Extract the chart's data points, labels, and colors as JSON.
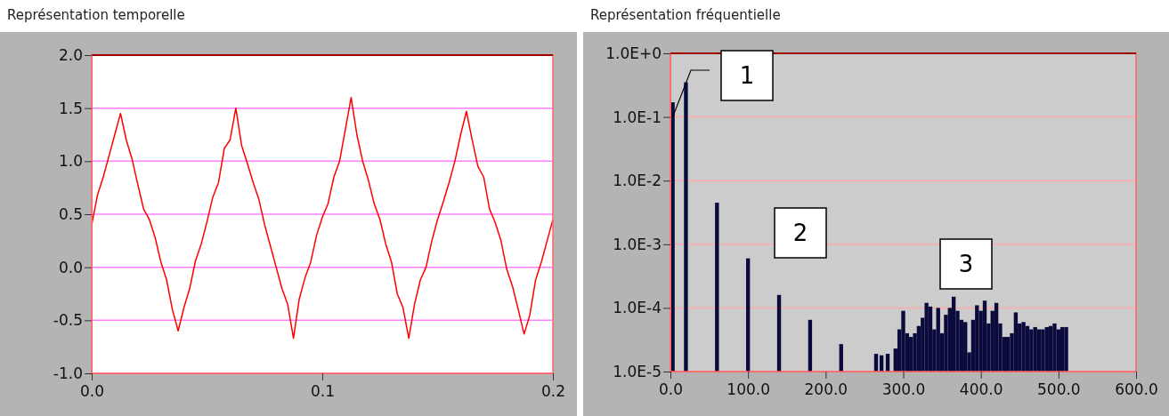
{
  "chart_data": [
    {
      "type": "line",
      "title": "Représentation temporelle",
      "color": "#ff0000",
      "grid": "y",
      "x": [
        0,
        0.0025,
        0.005,
        0.0075,
        0.01,
        0.0125,
        0.015,
        0.0175,
        0.02,
        0.0225,
        0.025,
        0.0275,
        0.03,
        0.0325,
        0.035,
        0.0375,
        0.04,
        0.0425,
        0.045,
        0.0475,
        0.05,
        0.0525,
        0.055,
        0.0575,
        0.06,
        0.0625,
        0.065,
        0.0675,
        0.07,
        0.0725,
        0.075,
        0.0775,
        0.08,
        0.0825,
        0.085,
        0.0875,
        0.09,
        0.0925,
        0.095,
        0.0975,
        0.1,
        0.1025,
        0.105,
        0.1075,
        0.11,
        0.1125,
        0.115,
        0.1175,
        0.12,
        0.1225,
        0.125,
        0.1275,
        0.13,
        0.1325,
        0.135,
        0.1375,
        0.14,
        0.1425,
        0.145,
        0.1475,
        0.15,
        0.1525,
        0.155,
        0.1575,
        0.16,
        0.1625,
        0.165,
        0.1675,
        0.17,
        0.1725,
        0.175,
        0.1775,
        0.18,
        0.1825,
        0.185,
        0.1875,
        0.19,
        0.1925,
        0.195,
        0.1975,
        0.2
      ],
      "values": [
        0.4,
        0.68,
        0.85,
        1.05,
        1.25,
        1.45,
        1.2,
        1.02,
        0.78,
        0.55,
        0.45,
        0.28,
        0.05,
        -0.12,
        -0.4,
        -0.6,
        -0.38,
        -0.2,
        0.06,
        0.22,
        0.43,
        0.66,
        0.8,
        1.12,
        1.2,
        1.5,
        1.15,
        0.98,
        0.8,
        0.64,
        0.4,
        0.2,
        0.0,
        -0.2,
        -0.35,
        -0.67,
        -0.3,
        -0.1,
        0.05,
        0.3,
        0.47,
        0.6,
        0.85,
        1.0,
        1.3,
        1.6,
        1.25,
        1.0,
        0.82,
        0.6,
        0.45,
        0.22,
        0.05,
        -0.25,
        -0.38,
        -0.67,
        -0.35,
        -0.12,
        0.0,
        0.25,
        0.45,
        0.62,
        0.8,
        1.0,
        1.25,
        1.47,
        1.2,
        0.95,
        0.85,
        0.55,
        0.42,
        0.25,
        -0.02,
        -0.18,
        -0.4,
        -0.63,
        -0.45,
        -0.12,
        0.05,
        0.25,
        0.45
      ],
      "xlim": [
        0,
        0.2
      ],
      "xticks": [
        {
          "value": 0,
          "label": "0.0"
        },
        0.1,
        0.2
      ],
      "ylim": [
        -1,
        2
      ],
      "yticks": [
        {
          "value": -1,
          "label": "-1.0"
        },
        {
          "value": -0.5,
          "label": "-0.5"
        },
        {
          "value": 0,
          "label": "0.0"
        },
        0.5,
        {
          "value": 1,
          "label": "1.0"
        },
        1.5,
        {
          "value": 2,
          "label": "2.0"
        }
      ]
    },
    {
      "type": "bar",
      "title": "Représentation fréquentielle",
      "color": "#0a0a3c",
      "grid": "y",
      "log": "y",
      "x": [
        3,
        20,
        60,
        100,
        140,
        180,
        220,
        265,
        272,
        280,
        290,
        295,
        300,
        305,
        310,
        315,
        320,
        325,
        330,
        335,
        340,
        345,
        350,
        355,
        360,
        365,
        370,
        375,
        380,
        385,
        390,
        395,
        400,
        405,
        410,
        415,
        420,
        425,
        430,
        435,
        440,
        445,
        450,
        455,
        460,
        465,
        470,
        475,
        480,
        485,
        490,
        495,
        500,
        505,
        510
      ],
      "values": [
        0.17,
        0.35,
        0.0045,
        0.0006,
        0.00016,
        6.5e-05,
        2.7e-05,
        1.9e-05,
        1.8e-05,
        1.9e-05,
        2.3e-05,
        4.6e-05,
        9e-05,
        4e-05,
        3.5e-05,
        4e-05,
        5.2e-05,
        7e-05,
        0.00012,
        0.000105,
        4.6e-05,
        0.0001,
        4e-05,
        7.8e-05,
        0.0001,
        0.00015,
        9e-05,
        6.5e-05,
        6e-05,
        2e-05,
        6.5e-05,
        0.00011,
        9e-05,
        0.00013,
        5.7e-05,
        9e-05,
        0.00012,
        5.7e-05,
        3.5e-05,
        3.5e-05,
        4e-05,
        8.5e-05,
        5.7e-05,
        6e-05,
        5.2e-05,
        4.6e-05,
        5e-05,
        4.6e-05,
        4.6e-05,
        5e-05,
        5.2e-05,
        5.7e-05,
        4.6e-05,
        5e-05,
        5e-05
      ],
      "xlim": [
        0,
        600
      ],
      "xticks": [
        {
          "value": 0,
          "label": "0.0"
        },
        {
          "value": 100,
          "label": "100.0"
        },
        {
          "value": 200,
          "label": "200.0"
        },
        {
          "value": 300,
          "label": "300.0"
        },
        {
          "value": 400,
          "label": "400.0"
        },
        {
          "value": 500,
          "label": "500.0"
        },
        {
          "value": 600,
          "label": "600.0"
        }
      ],
      "ylim": [
        1e-05,
        1
      ],
      "yticks": [
        {
          "value": 1e-05,
          "label": "1.0E-5"
        },
        {
          "value": 0.0001,
          "label": "1.0E-4"
        },
        {
          "value": 0.001,
          "label": "1.0E-3"
        },
        {
          "value": 0.01,
          "label": "1.0E-2"
        },
        {
          "value": 0.1,
          "label": "1.0E-1"
        },
        {
          "value": 1,
          "label": "1.0E+0"
        }
      ],
      "annotations": [
        {
          "text": "1",
          "x": 3,
          "y": 0.1
        },
        "2",
        "3"
      ]
    }
  ]
}
